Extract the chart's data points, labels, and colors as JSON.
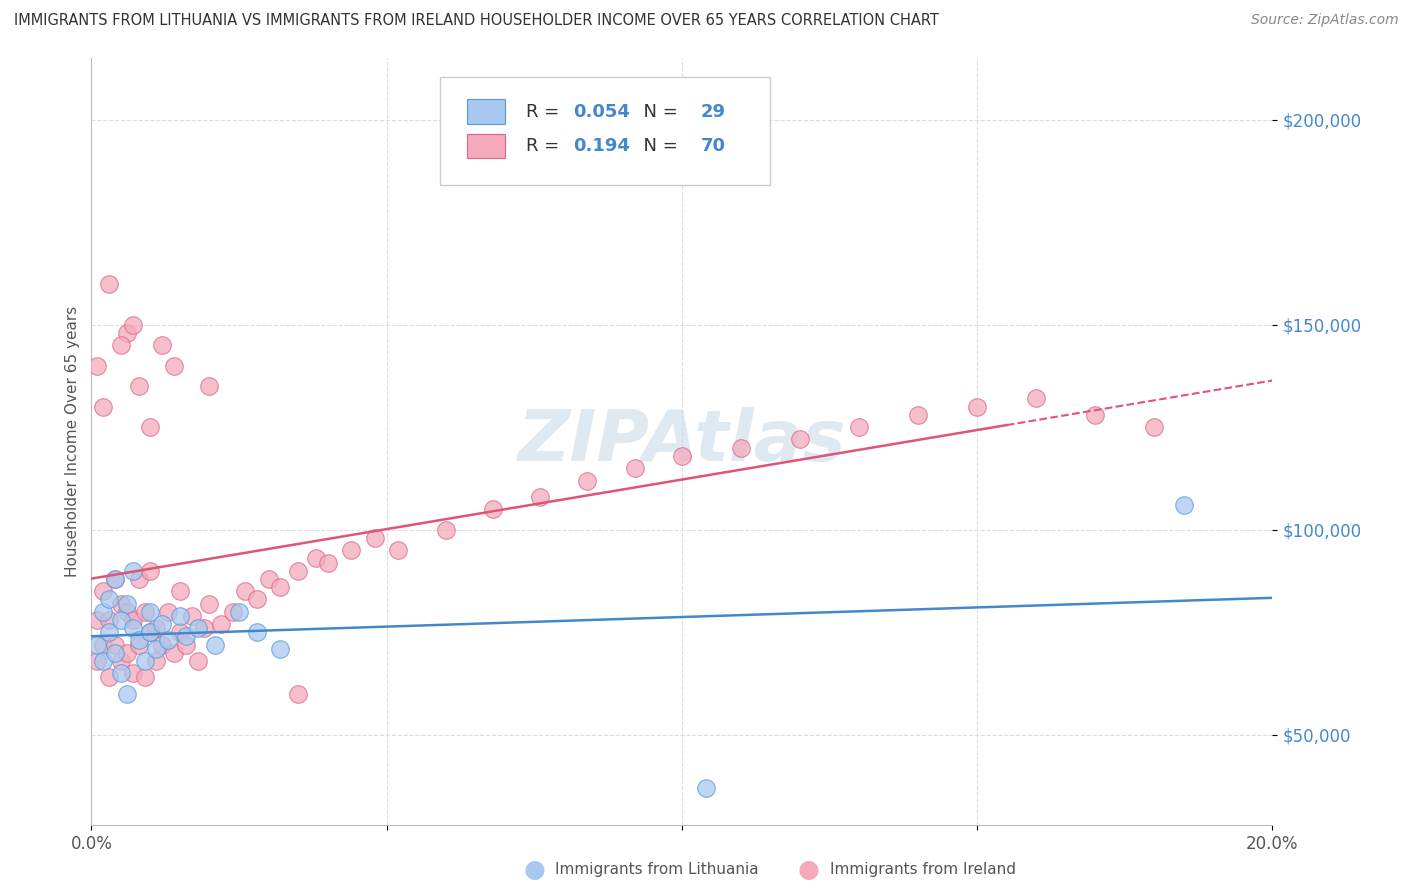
{
  "title": "IMMIGRANTS FROM LITHUANIA VS IMMIGRANTS FROM IRELAND HOUSEHOLDER INCOME OVER 65 YEARS CORRELATION CHART",
  "source": "Source: ZipAtlas.com",
  "ylabel": "Householder Income Over 65 years",
  "xlim": [
    0.0,
    0.2
  ],
  "ylim": [
    28000,
    215000
  ],
  "xticks": [
    0.0,
    0.05,
    0.1,
    0.15,
    0.2
  ],
  "xtick_labels": [
    "0.0%",
    "",
    "",
    "",
    "20.0%"
  ],
  "yticks": [
    50000,
    100000,
    150000,
    200000
  ],
  "ytick_labels": [
    "$50,000",
    "$100,000",
    "$150,000",
    "$200,000"
  ],
  "legend_labels": [
    "Immigrants from Lithuania",
    "Immigrants from Ireland"
  ],
  "legend_R": [
    0.054,
    0.194
  ],
  "legend_N": [
    29,
    70
  ],
  "blue_color": "#A8C8F0",
  "pink_color": "#F4AABB",
  "blue_edge_color": "#5599DD",
  "pink_edge_color": "#DD6688",
  "blue_line_color": "#4488CC",
  "pink_line_color": "#DD5577",
  "grid_color": "#DDDDDD",
  "watermark_color": "#C5D8E8",
  "lith_x": [
    0.001,
    0.002,
    0.002,
    0.003,
    0.003,
    0.004,
    0.004,
    0.005,
    0.005,
    0.006,
    0.006,
    0.007,
    0.007,
    0.008,
    0.009,
    0.01,
    0.01,
    0.011,
    0.012,
    0.013,
    0.015,
    0.016,
    0.018,
    0.021,
    0.025,
    0.028,
    0.032,
    0.185,
    0.104
  ],
  "lith_y": [
    72000,
    68000,
    80000,
    75000,
    83000,
    70000,
    88000,
    65000,
    78000,
    82000,
    60000,
    76000,
    90000,
    73000,
    68000,
    80000,
    75000,
    71000,
    77000,
    73000,
    79000,
    74000,
    76000,
    72000,
    80000,
    75000,
    71000,
    106000,
    37000
  ],
  "ire_x": [
    0.001,
    0.001,
    0.002,
    0.002,
    0.003,
    0.003,
    0.004,
    0.004,
    0.005,
    0.005,
    0.006,
    0.006,
    0.006,
    0.007,
    0.007,
    0.008,
    0.008,
    0.009,
    0.009,
    0.01,
    0.01,
    0.011,
    0.011,
    0.012,
    0.012,
    0.013,
    0.014,
    0.015,
    0.015,
    0.016,
    0.017,
    0.018,
    0.019,
    0.02,
    0.022,
    0.024,
    0.026,
    0.028,
    0.03,
    0.032,
    0.035,
    0.038,
    0.04,
    0.044,
    0.048,
    0.052,
    0.06,
    0.068,
    0.076,
    0.084,
    0.092,
    0.1,
    0.11,
    0.12,
    0.13,
    0.14,
    0.15,
    0.16,
    0.17,
    0.18,
    0.001,
    0.002,
    0.003,
    0.005,
    0.007,
    0.008,
    0.01,
    0.014,
    0.02,
    0.035
  ],
  "ire_y": [
    68000,
    78000,
    72000,
    85000,
    64000,
    78000,
    72000,
    88000,
    68000,
    82000,
    148000,
    70000,
    80000,
    65000,
    78000,
    72000,
    88000,
    64000,
    80000,
    75000,
    90000,
    68000,
    76000,
    145000,
    72000,
    80000,
    70000,
    75000,
    85000,
    72000,
    79000,
    68000,
    76000,
    82000,
    77000,
    80000,
    85000,
    83000,
    88000,
    86000,
    90000,
    93000,
    92000,
    95000,
    98000,
    95000,
    100000,
    105000,
    108000,
    112000,
    115000,
    118000,
    120000,
    122000,
    125000,
    128000,
    130000,
    132000,
    128000,
    125000,
    140000,
    130000,
    160000,
    145000,
    150000,
    135000,
    125000,
    140000,
    135000,
    60000
  ]
}
